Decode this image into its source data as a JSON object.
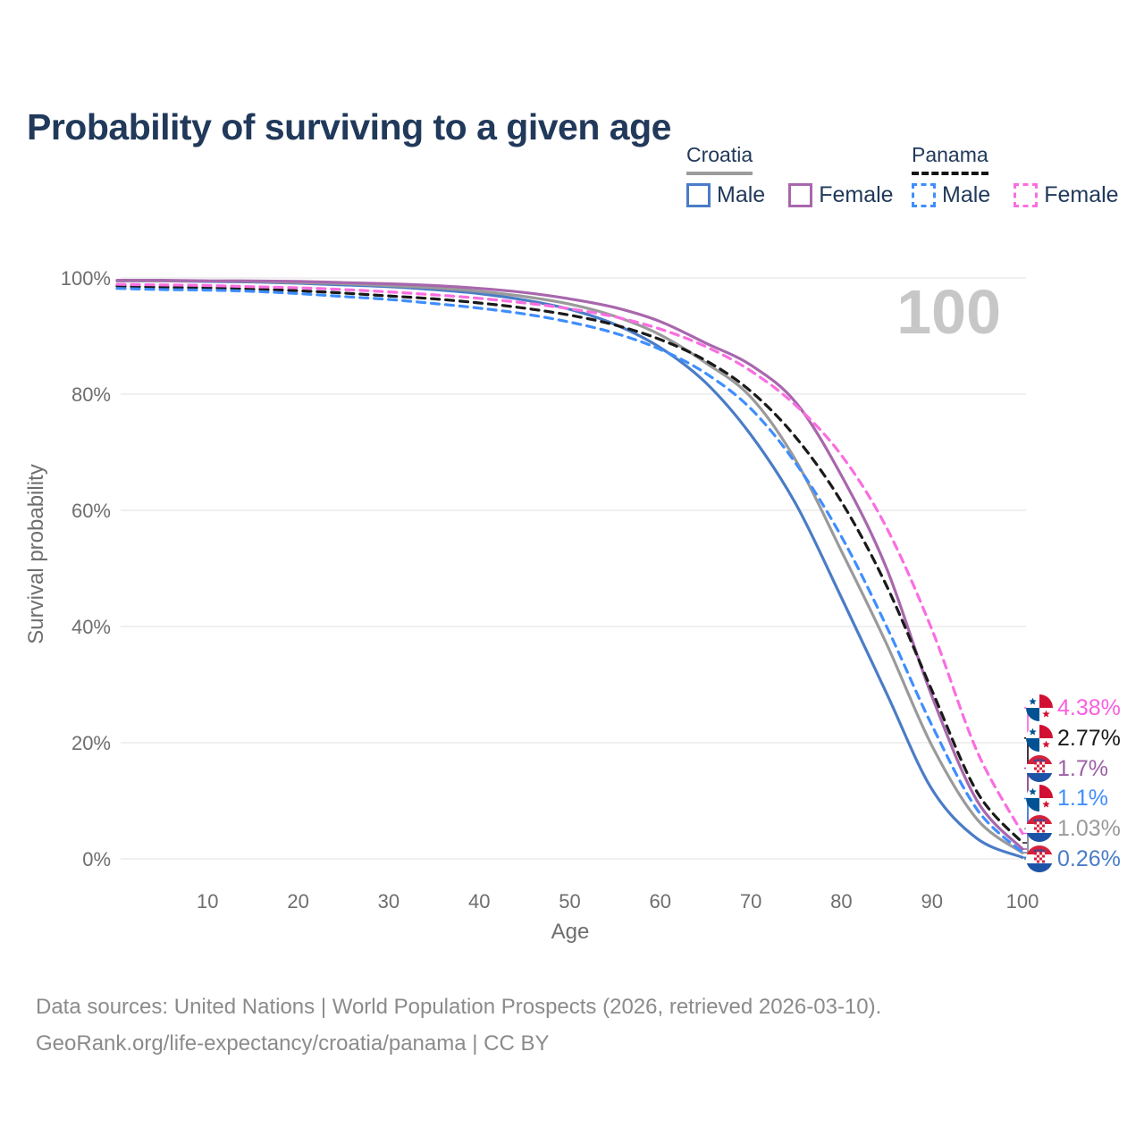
{
  "title": "Probability of surviving to a given age",
  "legend": {
    "groups": [
      {
        "label": "Croatia",
        "line_style": "solid",
        "underline_color": "#9c9c9c",
        "items": [
          {
            "label": "Male",
            "color": "#4a7cc7",
            "dashed": false
          },
          {
            "label": "Female",
            "color": "#a867ad",
            "dashed": false
          }
        ]
      },
      {
        "label": "Panama",
        "line_style": "dashed",
        "underline_color": "#141414",
        "items": [
          {
            "label": "Male",
            "color": "#3f8efd",
            "dashed": true
          },
          {
            "label": "Female",
            "color": "#fa6ee0",
            "dashed": true
          }
        ]
      }
    ]
  },
  "chart_data": {
    "type": "line",
    "title": "Probability of surviving to a given age",
    "xlabel": "Age",
    "ylabel": "Survival probability",
    "xlim": [
      0,
      100
    ],
    "ylim": [
      0,
      100
    ],
    "grid": "horizontal",
    "watermark": "100",
    "x_ticks": [
      10,
      20,
      30,
      40,
      50,
      60,
      70,
      80,
      90,
      100
    ],
    "y_ticks": [
      {
        "value": 0,
        "label": "0%"
      },
      {
        "value": 20,
        "label": "20%"
      },
      {
        "value": 40,
        "label": "40%"
      },
      {
        "value": 60,
        "label": "60%"
      },
      {
        "value": 80,
        "label": "80%"
      },
      {
        "value": 100,
        "label": "100%"
      }
    ],
    "x": [
      0,
      5,
      10,
      15,
      20,
      25,
      30,
      35,
      40,
      45,
      50,
      55,
      60,
      65,
      70,
      75,
      80,
      85,
      90,
      95,
      100
    ],
    "series": [
      {
        "name": "Croatia Male",
        "country": "Croatia",
        "sex": "Male",
        "color": "#4a7cc7",
        "dashed": false,
        "values": [
          99.5,
          99.5,
          99.4,
          99.3,
          99.1,
          98.8,
          98.5,
          98.0,
          97.3,
          96.2,
          94.6,
          92.0,
          88.0,
          82.0,
          73.0,
          61.0,
          45.0,
          28.5,
          12.0,
          3.5,
          0.26
        ]
      },
      {
        "name": "Croatia Both sexes",
        "country": "Croatia",
        "sex": "Both",
        "color": "#9a9a9a",
        "dashed": false,
        "values": [
          99.5,
          99.5,
          99.5,
          99.4,
          99.2,
          99.0,
          98.7,
          98.3,
          97.7,
          96.8,
          95.5,
          93.4,
          90.2,
          85.4,
          79.5,
          68.5,
          53.0,
          37.0,
          19.5,
          6.8,
          1.03
        ]
      },
      {
        "name": "Croatia Female",
        "country": "Croatia",
        "sex": "Female",
        "color": "#a867ad",
        "dashed": false,
        "values": [
          99.6,
          99.6,
          99.5,
          99.5,
          99.4,
          99.2,
          99.0,
          98.7,
          98.2,
          97.5,
          96.4,
          94.9,
          92.5,
          88.8,
          85.0,
          78.5,
          66.0,
          50.0,
          28.0,
          10.0,
          1.7
        ]
      },
      {
        "name": "Panama Both sexes",
        "country": "Panama",
        "sex": "Both",
        "color": "#1a1a1a",
        "dashed": true,
        "values": [
          98.6,
          98.4,
          98.3,
          98.1,
          97.8,
          97.4,
          96.9,
          96.4,
          95.7,
          94.8,
          93.6,
          91.9,
          89.4,
          85.8,
          80.5,
          72.5,
          61.5,
          47.0,
          29.0,
          11.5,
          2.77
        ]
      },
      {
        "name": "Panama Male",
        "country": "Panama",
        "sex": "Male",
        "color": "#3f8efd",
        "dashed": true,
        "values": [
          98.2,
          98.0,
          97.9,
          97.7,
          97.3,
          96.8,
          96.3,
          95.6,
          94.8,
          93.8,
          92.4,
          90.5,
          87.7,
          83.6,
          77.5,
          68.0,
          55.5,
          40.0,
          23.0,
          8.5,
          1.1
        ]
      },
      {
        "name": "Panama Female",
        "country": "Panama",
        "sex": "Female",
        "color": "#fa6ee0",
        "dashed": true,
        "values": [
          98.9,
          98.8,
          98.7,
          98.5,
          98.3,
          98.0,
          97.6,
          97.1,
          96.5,
          95.7,
          94.7,
          93.3,
          91.2,
          88.2,
          84.0,
          78.0,
          69.5,
          57.0,
          39.5,
          18.5,
          4.38
        ]
      }
    ],
    "end_labels": [
      {
        "text": "4.38%",
        "value": 4.38,
        "color": "#fa5fe0",
        "flag": "panama"
      },
      {
        "text": "2.77%",
        "value": 2.77,
        "color": "#1a1a1a",
        "flag": "panama"
      },
      {
        "text": "1.7%",
        "value": 1.7,
        "color": "#9d5ea6",
        "flag": "croatia"
      },
      {
        "text": "1.1%",
        "value": 1.1,
        "color": "#3f8efd",
        "flag": "panama"
      },
      {
        "text": "1.03%",
        "value": 1.03,
        "color": "#9a9a9a",
        "flag": "croatia"
      },
      {
        "text": "0.26%",
        "value": 0.26,
        "color": "#4a7cc7",
        "flag": "croatia"
      }
    ]
  },
  "footer": {
    "line1": "Data sources: United Nations | World Population Prospects (2026, retrieved 2026-03-10).",
    "line2": "GeoRank.org/life-expectancy/croatia/panama | CC BY"
  }
}
